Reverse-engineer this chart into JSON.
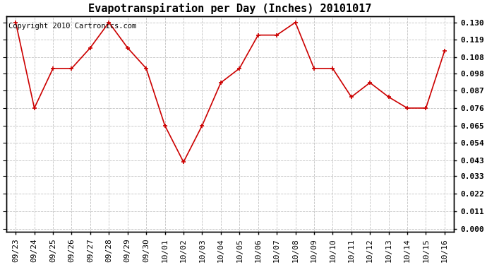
{
  "title": "Evapotranspiration per Day (Inches) 20101017",
  "copyright_text": "Copyright 2010 Cartronics.com",
  "x_labels": [
    "09/23",
    "09/24",
    "09/25",
    "09/26",
    "09/27",
    "09/28",
    "09/29",
    "09/30",
    "10/01",
    "10/02",
    "10/03",
    "10/04",
    "10/05",
    "10/06",
    "10/07",
    "10/08",
    "10/09",
    "10/10",
    "10/11",
    "10/12",
    "10/13",
    "10/14",
    "10/15",
    "10/16"
  ],
  "y_values": [
    0.13,
    0.076,
    0.101,
    0.101,
    0.114,
    0.13,
    0.114,
    0.101,
    0.065,
    0.042,
    0.065,
    0.092,
    0.101,
    0.122,
    0.122,
    0.13,
    0.101,
    0.101,
    0.083,
    0.092,
    0.083,
    0.076,
    0.076,
    0.112
  ],
  "y_ticks": [
    0.0,
    0.011,
    0.022,
    0.033,
    0.043,
    0.054,
    0.065,
    0.076,
    0.087,
    0.098,
    0.108,
    0.119,
    0.13
  ],
  "y_tick_labels": [
    "0.000",
    "0.011",
    "0.022",
    "0.033",
    "0.043",
    "0.054",
    "0.065",
    "0.076",
    "0.087",
    "0.098",
    "0.108",
    "0.119",
    "0.130"
  ],
  "line_color": "#cc0000",
  "marker": "+",
  "marker_color": "#cc0000",
  "marker_size": 5,
  "marker_linewidth": 1.2,
  "line_width": 1.2,
  "bg_color": "#ffffff",
  "grid_color": "#bbbbbb",
  "ylim_min": -0.002,
  "ylim_max": 0.134,
  "title_fontsize": 11,
  "tick_fontsize": 8,
  "copyright_fontsize": 7.5,
  "figwidth": 6.9,
  "figheight": 3.75,
  "dpi": 100
}
